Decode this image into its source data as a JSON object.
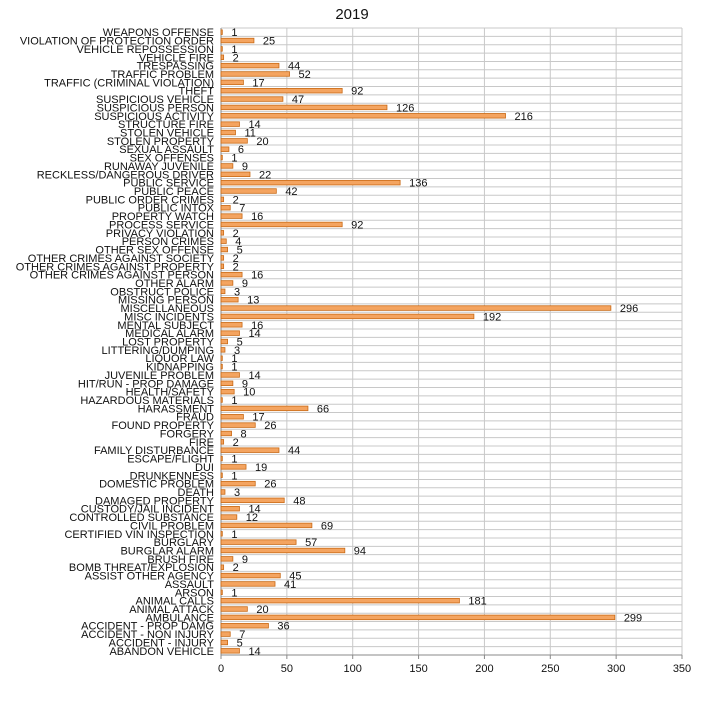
{
  "chart_data": {
    "type": "bar",
    "orientation": "horizontal",
    "title": "2019",
    "xlabel": "",
    "ylabel": "",
    "xlim": [
      0,
      350
    ],
    "xticks": [
      0,
      50,
      100,
      150,
      200,
      250,
      300,
      350
    ],
    "grid": true,
    "legend": "none",
    "colors": {
      "bar_fill": "#f4a460",
      "bar_edge": "#c96a16",
      "grid": "#c8c8c8",
      "axis": "#888888"
    },
    "categories": [
      "WEAPONS OFFENSE",
      "VIOLATION OF PROTECTION ORDER",
      "VEHICLE REPOSSESSION",
      "VEHICLE FIRE",
      "TRESPASSING",
      "TRAFFIC PROBLEM",
      "TRAFFIC (CRIMINAL VIOLATION)",
      "THEFT",
      "SUSPICIOUS VEHICLE",
      "SUSPICIOUS PERSON",
      "SUSPICIOUS ACTIVITY",
      "STRUCTURE FIRE",
      "STOLEN VEHICLE",
      "STOLEN PROPERTY",
      "SEXUAL ASSAULT",
      "SEX OFFENSES",
      "RUNAWAY JUVENILE",
      "RECKLESS/DANGEROUS DRIVER",
      "PUBLIC SERVICE",
      "PUBLIC PEACE",
      "PUBLIC ORDER CRIMES",
      "PUBLIC INTOX",
      "PROPERTY WATCH",
      "PROCESS SERVICE",
      "PRIVACY VIOLATION",
      "PERSON CRIMES",
      "OTHER SEX OFFENSE",
      "OTHER CRIMES AGAINST SOCIETY",
      "OTHER CRIMES AGAINST PROPERTY",
      "OTHER CRIMES AGAINST PERSON",
      "OTHER ALARM",
      "OBSTRUCT POLICE",
      "MISSING PERSON",
      "MISCELLANEOUS",
      "MISC INCIDENTS",
      "MENTAL SUBJECT",
      "MEDICAL ALARM",
      "LOST PROPERTY",
      "LITTERING/DUMPING",
      "LIQUOR LAW",
      "KIDNAPPING",
      "JUVENILE PROBLEM",
      "HIT/RUN - PROP DAMAGE",
      "HEALTH/SAFETY",
      "HAZARDOUS MATERIALS",
      "HARASSMENT",
      "FRAUD",
      "FOUND PROPERTY",
      "FORGERY",
      "FIRE",
      "FAMILY DISTURBANCE",
      "ESCAPE/FLIGHT",
      "DUI",
      "DRUNKENNESS",
      "DOMESTIC PROBLEM",
      "DEATH",
      "DAMAGED PROPERTY",
      "CUSTODY/JAIL INCIDENT",
      "CONTROLLED SUBSTANCE",
      "CIVIL PROBLEM",
      "CERTIFIED VIN INSPECTION",
      "BURGLARY",
      "BURGLAR ALARM",
      "BRUSH FIRE",
      "BOMB THREAT/EXPLOSION",
      "ASSIST OTHER AGENCY",
      "ASSAULT",
      "ARSON",
      "ANIMAL CALLS",
      "ANIMAL ATTACK",
      "AMBULANCE",
      "ACCIDENT - PROP DAMG",
      "ACCIDENT - NON INJURY",
      "ACCIDENT - INJURY",
      "ABANDON VEHICLE"
    ],
    "values": [
      1,
      25,
      1,
      2,
      44,
      52,
      17,
      92,
      47,
      126,
      216,
      14,
      11,
      20,
      6,
      1,
      9,
      22,
      136,
      42,
      2,
      7,
      16,
      92,
      2,
      4,
      5,
      2,
      2,
      16,
      9,
      3,
      13,
      296,
      192,
      16,
      14,
      5,
      3,
      1,
      1,
      14,
      9,
      10,
      1,
      66,
      17,
      26,
      8,
      2,
      44,
      1,
      19,
      1,
      26,
      3,
      48,
      14,
      12,
      69,
      1,
      57,
      94,
      9,
      2,
      45,
      41,
      1,
      181,
      20,
      299,
      36,
      7,
      5,
      14
    ]
  }
}
